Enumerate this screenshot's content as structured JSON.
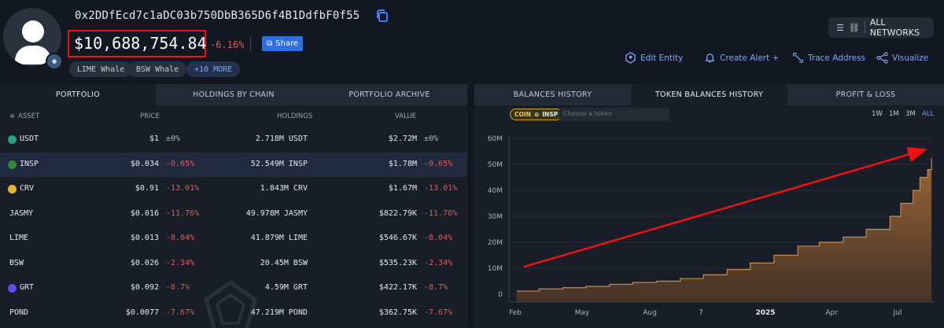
{
  "header": {
    "address": "0x2DDfEcd7c1aDC03b750DbB365D6f4B1DdfbF0f55",
    "total_value": "$10,688,754.84",
    "total_change": "-6.16%",
    "share_label": "Share",
    "tags": [
      "LIME Whale",
      "BSW Whale",
      "+10 MORE"
    ],
    "networks_label": "ALL NETWORKS",
    "actions": [
      "Edit Entity",
      "Create Alert +",
      "Trace Address",
      "Visualize"
    ],
    "colors": {
      "accent": "#2d6ee0",
      "negative": "#e05a5a",
      "highlight_box": "#ee1111"
    }
  },
  "left_tabs": [
    "PORTFOLIO",
    "HOLDINGS BY CHAIN",
    "PORTFOLIO ARCHIVE"
  ],
  "table": {
    "headers": {
      "asset": "ASSET",
      "price": "PRICE",
      "holdings": "HOLDINGS",
      "value": "VALUE"
    },
    "rows": [
      {
        "asset": "USDT",
        "price": "$1",
        "price_change": "±0%",
        "holdings": "2.718M USDT",
        "value": "$2.72M",
        "value_change": "±0%",
        "icon": "usdt-icon",
        "color": "#26a17b"
      },
      {
        "asset": "INSP",
        "price": "$0.034",
        "price_change": "-0.65%",
        "holdings": "52.549M INSP",
        "value": "$1.78M",
        "value_change": "-0.65%",
        "icon": "insp-icon",
        "color": "#2f8a3a"
      },
      {
        "asset": "CRV",
        "price": "$0.91",
        "price_change": "-13.01%",
        "holdings": "1.843M CRV",
        "value": "$1.67M",
        "value_change": "-13.01%",
        "icon": "crv-icon",
        "color": "#e4b52e"
      },
      {
        "asset": "JASMY",
        "price": "$0.016",
        "price_change": "-11.76%",
        "holdings": "49.978M JASMY",
        "value": "$822.79K",
        "value_change": "-11.76%",
        "icon": "",
        "color": ""
      },
      {
        "asset": "LIME",
        "price": "$0.013",
        "price_change": "-8.04%",
        "holdings": "41.879M LIME",
        "value": "$546.67K",
        "value_change": "-8.04%",
        "icon": "",
        "color": ""
      },
      {
        "asset": "BSW",
        "price": "$0.026",
        "price_change": "-2.34%",
        "holdings": "20.45M BSW",
        "value": "$535.23K",
        "value_change": "-2.34%",
        "icon": "",
        "color": ""
      },
      {
        "asset": "GRT",
        "price": "$0.092",
        "price_change": "-8.7%",
        "holdings": "4.59M GRT",
        "value": "$422.17K",
        "value_change": "-8.7%",
        "icon": "grt-icon",
        "color": "#6747ed"
      },
      {
        "asset": "POND",
        "price": "$0.0077",
        "price_change": "-7.67%",
        "holdings": "47.219M POND",
        "value": "$362.75K",
        "value_change": "-7.67%",
        "icon": "",
        "color": ""
      }
    ]
  },
  "right_tabs": [
    "BALANCES HISTORY",
    "TOKEN BALANCES HISTORY",
    "PROFIT & LOSS"
  ],
  "chart_controls": {
    "coin_pill_prefix": "COIN",
    "coin_pill_token": "INSP",
    "search_placeholder": "Choose a token",
    "ranges": [
      "1W",
      "1M",
      "3M",
      "ALL"
    ],
    "active_range": "ALL"
  },
  "chart_data": {
    "type": "area",
    "title": "",
    "yticks": [
      "60M",
      "50M",
      "40M",
      "30M",
      "20M",
      "10M",
      "0"
    ],
    "xticks": [
      "Feb",
      "May",
      "Aug",
      "7",
      "2025",
      "Apr",
      "Jul"
    ],
    "ylim": [
      0,
      63
    ],
    "y_unit": "M",
    "x": [
      "2024-02-01",
      "2024-03-01",
      "2024-04-01",
      "2024-05-01",
      "2024-06-01",
      "2024-07-01",
      "2024-08-01",
      "2024-09-01",
      "2024-10-01",
      "2024-11-01",
      "2024-12-01",
      "2025-01-01",
      "2025-02-01",
      "2025-03-01",
      "2025-04-01",
      "2025-05-01",
      "2025-06-01",
      "2025-06-15",
      "2025-07-01",
      "2025-07-10",
      "2025-07-20",
      "2025-07-25"
    ],
    "values": [
      1.2,
      2.0,
      2.5,
      3.0,
      3.8,
      4.5,
      5.0,
      6.0,
      7.5,
      9.5,
      12.0,
      15.0,
      18.5,
      20.0,
      22.0,
      25.0,
      30.0,
      35.0,
      40.0,
      45.0,
      48.0,
      52.5
    ],
    "series_color": "#8a5a32",
    "grid": true,
    "annotations": [
      {
        "type": "arrow",
        "color": "#e11",
        "from": [
          "2024-02-10",
          10.5
        ],
        "to": [
          "2025-07-15",
          55.5
        ]
      }
    ]
  }
}
